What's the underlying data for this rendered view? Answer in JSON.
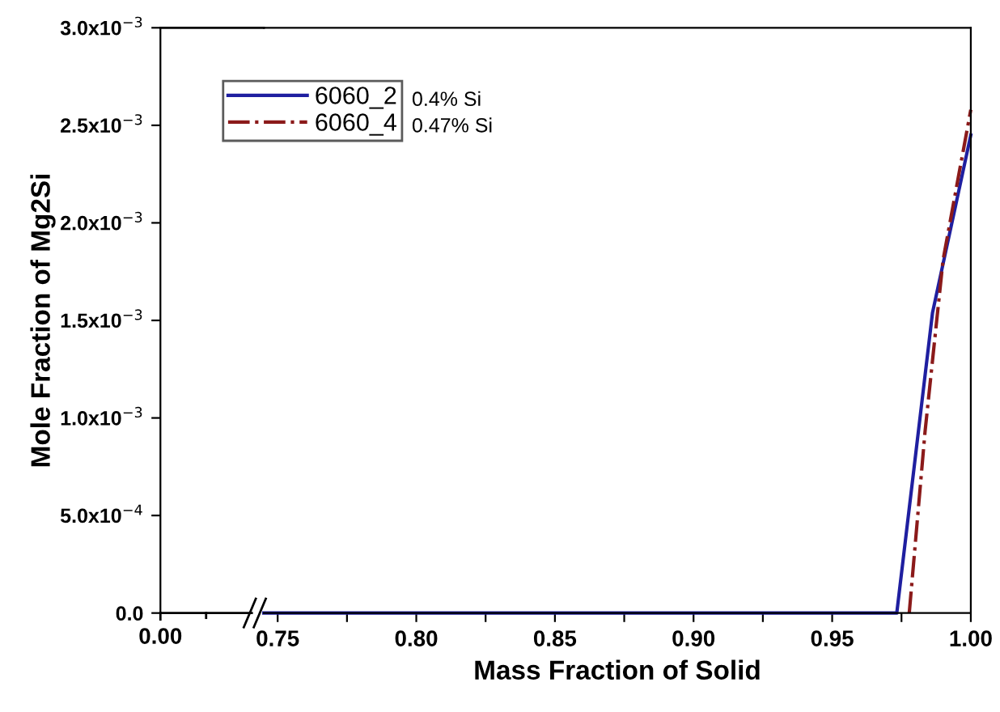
{
  "chart_data": {
    "type": "line",
    "xlabel": "Mass Fraction of Solid",
    "ylabel": "Mole Fraction of Mg2Si",
    "xlim": [
      0.745,
      1.0
    ],
    "xticks": [
      {
        "value": 0.75,
        "label": "0.75"
      },
      {
        "value": 0.775,
        "label": null
      },
      {
        "value": 0.8,
        "label": "0.80"
      },
      {
        "value": 0.825,
        "label": null
      },
      {
        "value": 0.85,
        "label": "0.85"
      },
      {
        "value": 0.875,
        "label": null
      },
      {
        "value": 0.9,
        "label": "0.90"
      },
      {
        "value": 0.925,
        "label": null
      },
      {
        "value": 0.95,
        "label": "0.95"
      },
      {
        "value": 0.975,
        "label": null
      },
      {
        "value": 1.0,
        "label": "1.00"
      }
    ],
    "ylim": [
      0,
      0.003
    ],
    "yticks": [
      {
        "value": 0,
        "label": "0.0"
      },
      {
        "value": 0.0005,
        "label": "5.0x10$^{−4}$"
      },
      {
        "value": 0.001,
        "label": "1.0x10$^{−3}$"
      },
      {
        "value": 0.0015,
        "label": "1.5x10$^{−3}$"
      },
      {
        "value": 0.002,
        "label": "2.0x10$^{−3}$"
      },
      {
        "value": 0.0025,
        "label": "2.5x10$^{−3}$"
      },
      {
        "value": 0.003,
        "label": "3.0x10$^{−3}$"
      }
    ],
    "series": [
      {
        "name": "6060_2",
        "color": "#1f1fa0",
        "line_style": "solid",
        "x": [
          0.745,
          0.9733,
          0.9862,
          1.0
        ],
        "values": [
          0,
          0,
          0.00154,
          0.00245
        ]
      },
      {
        "name": "6060_4",
        "color": "#8b1a1a",
        "line_style": "dashdot",
        "x": [
          0.9778,
          0.9835,
          0.99,
          1.0
        ],
        "values": [
          0,
          0.00093,
          0.00181,
          0.00258
        ]
      }
    ],
    "annotations": [
      "0.4% Si",
      "0.47% Si",
      "0.00"
    ],
    "grid": false,
    "legend": "top left"
  }
}
